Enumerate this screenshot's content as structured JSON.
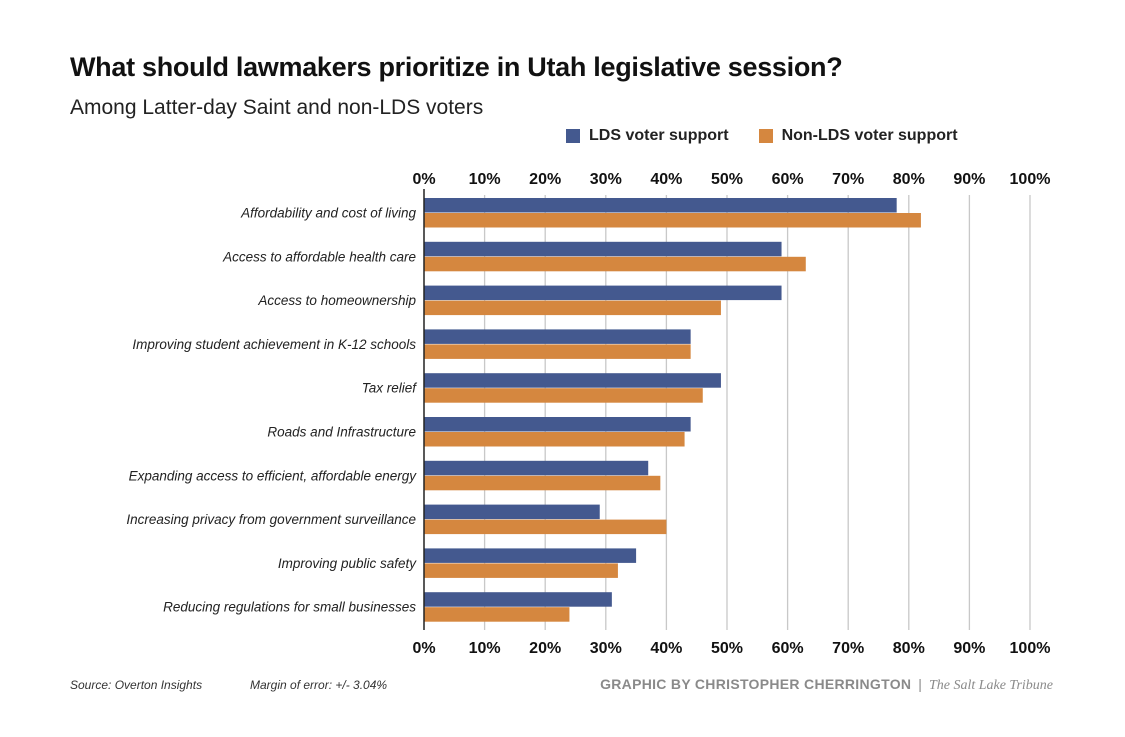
{
  "chart_data": {
    "type": "bar",
    "orientation": "horizontal",
    "title": "What should lawmakers prioritize in Utah legislative session?",
    "subtitle": "Among Latter-day Saint and non-LDS voters",
    "categories": [
      "Affordability and cost of living",
      "Access to affordable health care",
      "Access to homeownership",
      "Improving student achievement in K-12 schools",
      "Tax relief",
      "Roads and Infrastructure",
      "Expanding access to efficient, affordable energy",
      "Increasing privacy from government surveillance",
      "Improving public safety",
      "Reducing regulations for small businesses"
    ],
    "series": [
      {
        "name": "LDS voter support",
        "color": "#44598f",
        "values": [
          78,
          59,
          59,
          44,
          49,
          44,
          37,
          29,
          35,
          31
        ]
      },
      {
        "name": "Non-LDS voter support",
        "color": "#d5873f",
        "values": [
          82,
          63,
          49,
          44,
          46,
          43,
          39,
          40,
          32,
          24
        ]
      }
    ],
    "xlim": [
      0,
      100
    ],
    "ticks": [
      "0%",
      "10%",
      "20%",
      "30%",
      "40%",
      "50%",
      "60%",
      "70%",
      "80%",
      "90%",
      "100%"
    ],
    "grid": true,
    "legend_position": "top-right"
  },
  "footer": {
    "source": "Source: Overton Insights",
    "margin_of_error": "Margin of error: +/- 3.04%",
    "credit": "GRAPHIC BY CHRISTOPHER CHERRINGTON",
    "separator": "|",
    "publication": "The Salt Lake Tribune"
  }
}
